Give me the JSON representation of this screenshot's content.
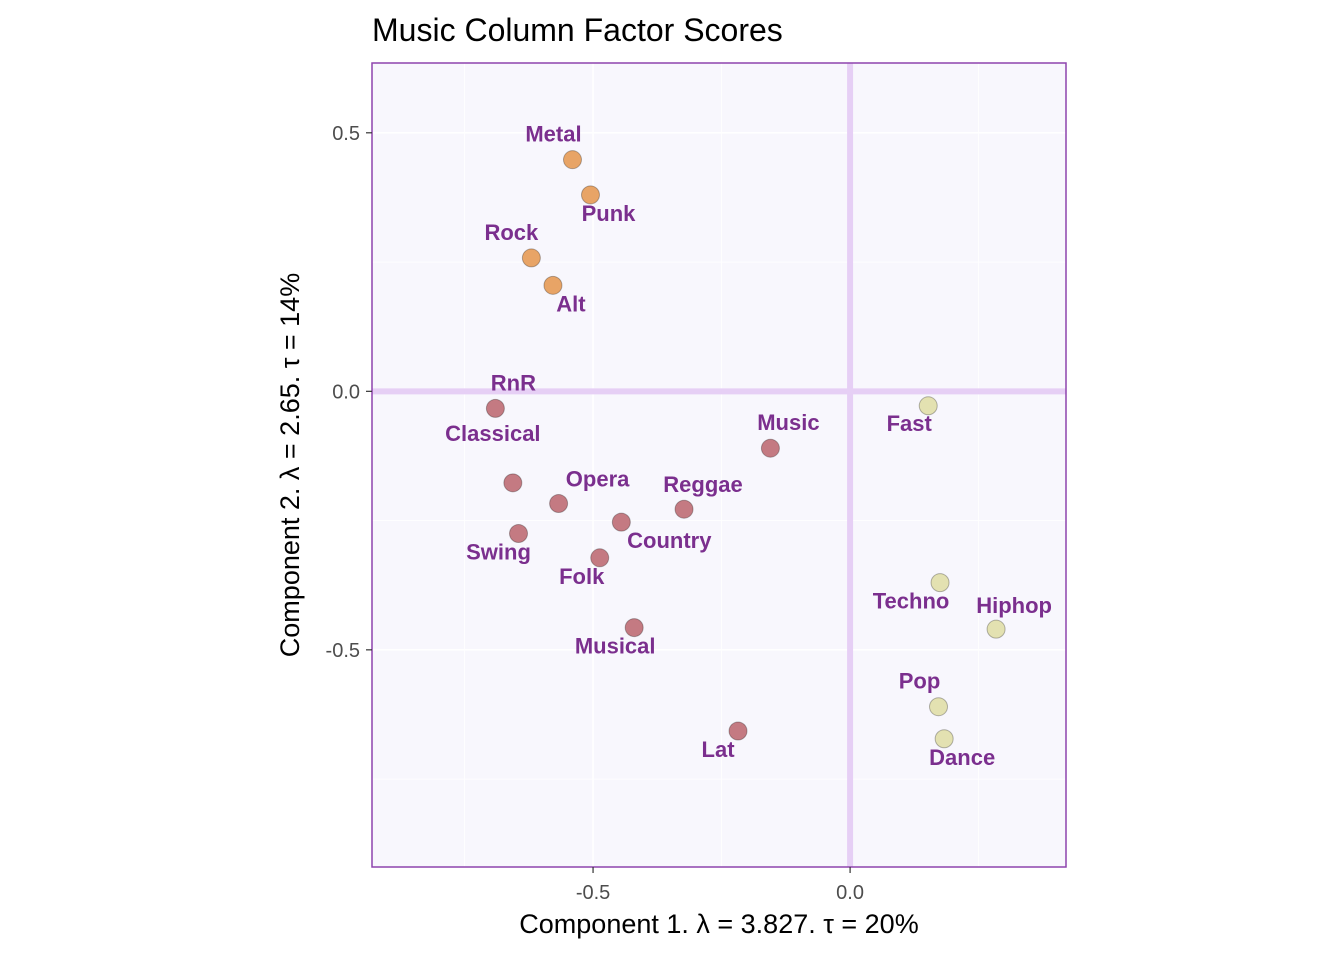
{
  "chart_data": {
    "type": "scatter",
    "title": "Music Column Factor Scores",
    "xlabel": "Component 1.   λ = 3.827.  τ = 20%",
    "ylabel": "Component 2.   λ = 2.65.  τ = 14%",
    "xlim": [
      -0.93,
      0.42
    ],
    "ylim": [
      -0.92,
      0.635
    ],
    "x_ticks": [
      {
        "value": -0.5,
        "label": "-0.5"
      },
      {
        "value": 0.0,
        "label": "0.0"
      }
    ],
    "y_ticks": [
      {
        "value": 0.5,
        "label": "0.5"
      },
      {
        "value": 0.0,
        "label": "0.0"
      },
      {
        "value": -0.5,
        "label": "-0.5"
      }
    ],
    "grid": true,
    "legend": "none",
    "colors": {
      "panel_background": "#f8f7fd",
      "panel_border": "#8e44ad",
      "origin_lines": "#e6cff5",
      "gridlines": "#ffffff",
      "label_text": "#7b2f8e",
      "group_rock": "#e8a466",
      "group_mellow": "#c47a82",
      "group_dance": "#e3e1b1"
    },
    "points": [
      {
        "label": "Metal",
        "x": -0.54,
        "y": 0.448,
        "group": "rock"
      },
      {
        "label": "Punk",
        "x": -0.505,
        "y": 0.38,
        "group": "rock"
      },
      {
        "label": "Rock",
        "x": -0.62,
        "y": 0.258,
        "group": "rock"
      },
      {
        "label": "Alt",
        "x": -0.578,
        "y": 0.205,
        "group": "rock"
      },
      {
        "label": "RnR",
        "x": -0.69,
        "y": -0.033,
        "group": "mellow"
      },
      {
        "label": "Music",
        "x": -0.155,
        "y": -0.11,
        "group": "mellow"
      },
      {
        "label": "Classical",
        "x": -0.656,
        "y": -0.177,
        "group": "mellow"
      },
      {
        "label": "Opera",
        "x": -0.567,
        "y": -0.217,
        "group": "mellow"
      },
      {
        "label": "Reggae",
        "x": -0.323,
        "y": -0.228,
        "group": "mellow"
      },
      {
        "label": "Country",
        "x": -0.445,
        "y": -0.253,
        "group": "mellow"
      },
      {
        "label": "Swing",
        "x": -0.645,
        "y": -0.275,
        "group": "mellow"
      },
      {
        "label": "Folk",
        "x": -0.487,
        "y": -0.322,
        "group": "mellow"
      },
      {
        "label": "Musical",
        "x": -0.42,
        "y": -0.457,
        "group": "mellow"
      },
      {
        "label": "Lat",
        "x": -0.218,
        "y": -0.657,
        "group": "mellow"
      },
      {
        "label": "Fast",
        "x": 0.152,
        "y": -0.028,
        "group": "dance"
      },
      {
        "label": "Techno",
        "x": 0.175,
        "y": -0.37,
        "group": "dance"
      },
      {
        "label": "Hiphop",
        "x": 0.284,
        "y": -0.46,
        "group": "dance"
      },
      {
        "label": "Pop",
        "x": 0.172,
        "y": -0.61,
        "group": "dance"
      },
      {
        "label": "Dance",
        "x": 0.183,
        "y": -0.672,
        "group": "dance"
      }
    ]
  }
}
